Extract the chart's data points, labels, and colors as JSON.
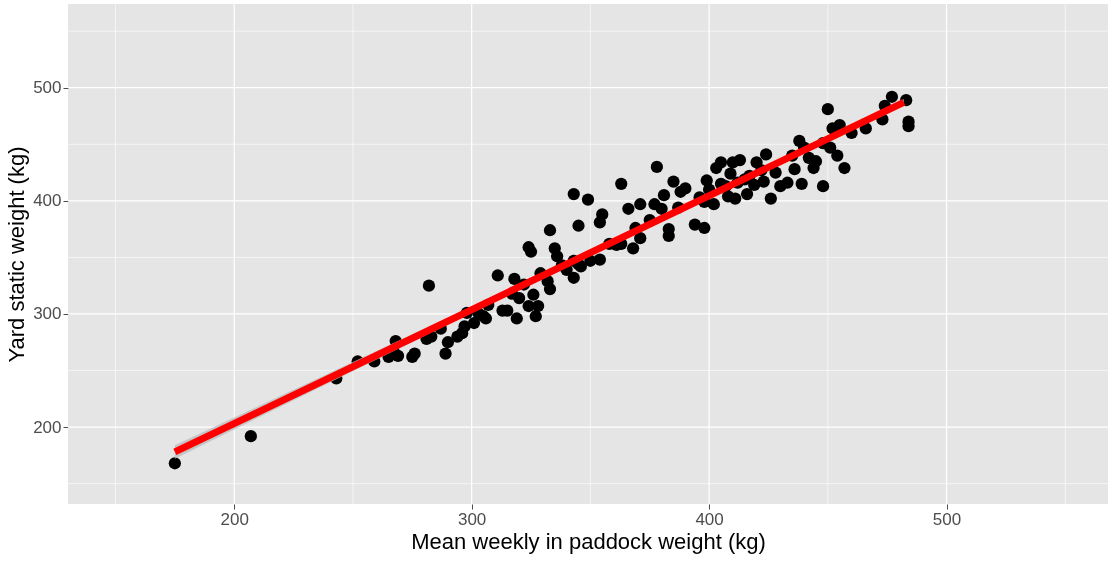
{
  "chart_data": {
    "type": "scatter",
    "xlabel": "Mean weekly in paddock weight (kg)",
    "ylabel": "Yard static weight (kg)",
    "xlim": [
      130,
      568
    ],
    "ylim": [
      132,
      574
    ],
    "xticks": [
      {
        "value": 150,
        "label": null
      },
      200,
      {
        "value": 250,
        "label": null
      },
      300,
      {
        "value": 350,
        "label": null
      },
      400,
      {
        "value": 450,
        "label": null
      },
      500,
      {
        "value": 550,
        "label": null
      }
    ],
    "yticks": [
      {
        "value": 150,
        "label": null
      },
      200,
      {
        "value": 250,
        "label": null
      },
      300,
      {
        "value": 350,
        "label": null
      },
      400,
      {
        "value": 450,
        "label": null
      },
      500,
      {
        "value": 550,
        "label": null
      }
    ],
    "grid": true,
    "series": [
      {
        "color": "#000000",
        "marker": "circle",
        "x": [
          175,
          207,
          243,
          252,
          259,
          265,
          267,
          268,
          269,
          275,
          276,
          282,
          281,
          283,
          287,
          289,
          290,
          294,
          296,
          297,
          298,
          301,
          303,
          305,
          306,
          307,
          311,
          313,
          315,
          317,
          318,
          319,
          320,
          322,
          324,
          324,
          325,
          326,
          327,
          328,
          329,
          332,
          333,
          333,
          335,
          336,
          338,
          340,
          343,
          343,
          343,
          345,
          346,
          345,
          349,
          350,
          354,
          354,
          355,
          358,
          361,
          363,
          363,
          366,
          368,
          369,
          371,
          371,
          375,
          377,
          378,
          380,
          381,
          383,
          383,
          385,
          387,
          388,
          390,
          394,
          396,
          398,
          398,
          399,
          400,
          402,
          403,
          405,
          405,
          407,
          408,
          409,
          410,
          411,
          412,
          413,
          415,
          416,
          417,
          419,
          420,
          422,
          423,
          424,
          426,
          428,
          430,
          433,
          435,
          436,
          438,
          439,
          440,
          442,
          444,
          445,
          448,
          448,
          451,
          450,
          452,
          454,
          455,
          457,
          460,
          466,
          473,
          474,
          477,
          483,
          484,
          484
        ],
        "values": [
          168,
          192,
          243,
          258,
          258,
          262,
          268,
          276,
          263,
          262,
          265,
          325,
          278,
          280,
          287,
          265,
          275,
          280,
          283,
          289,
          301,
          292,
          300,
          298,
          296,
          308,
          334,
          303,
          303,
          318,
          331,
          296,
          314,
          326,
          307,
          359,
          355,
          317,
          298,
          307,
          336,
          329,
          374,
          322,
          358,
          351,
          343,
          339,
          332,
          347,
          406,
          344,
          342,
          378,
          401,
          347,
          348,
          381,
          388,
          362,
          361,
          415,
          362,
          393,
          358,
          376,
          397,
          367,
          383,
          397,
          430,
          393,
          405,
          369,
          375,
          417,
          394,
          408,
          411,
          379,
          403,
          399,
          376,
          418,
          410,
          397,
          429,
          415,
          434,
          413,
          404,
          424,
          434,
          402,
          416,
          436,
          419,
          406,
          422,
          414,
          434,
          427,
          417,
          441,
          402,
          425,
          413,
          416,
          440,
          428,
          453,
          415,
          447,
          438,
          429,
          435,
          451,
          413,
          447,
          481,
          464,
          440,
          467,
          429,
          460,
          464,
          472,
          484,
          492,
          489,
          470,
          466
        ]
      },
      {
        "type": "line",
        "color": "#ff0000",
        "x": [
          175,
          330,
          482
        ],
        "values": [
          178,
          334,
          487
        ],
        "lower": [
          172,
          332,
          484
        ],
        "upper": [
          184,
          336,
          490
        ],
        "marker": "none",
        "line_style": "solid"
      }
    ]
  }
}
